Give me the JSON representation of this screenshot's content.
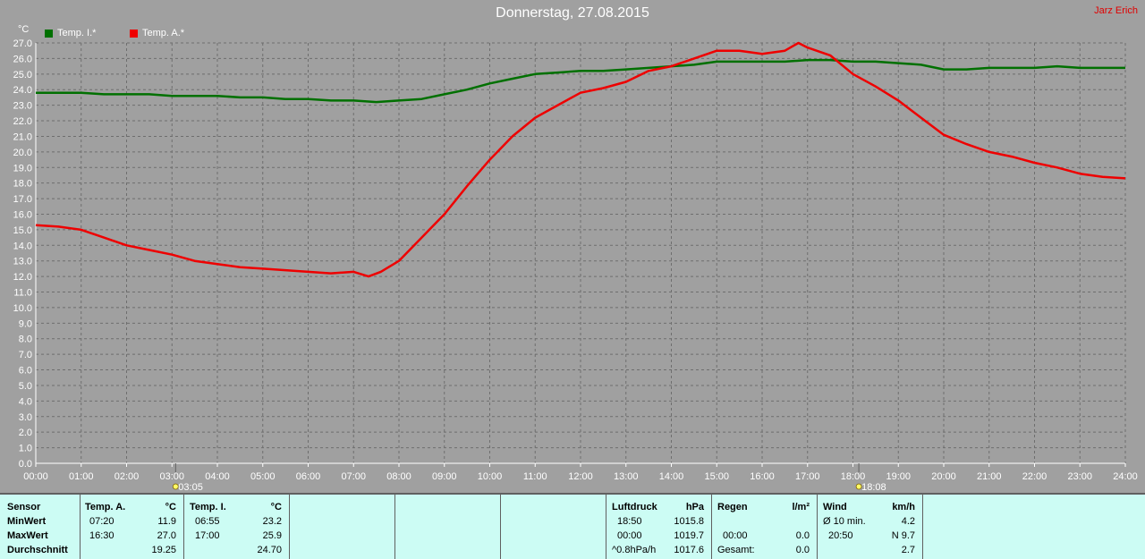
{
  "title": "Donnerstag, 27.08.2015",
  "author": "Jarz Erich",
  "chart_data": {
    "type": "line",
    "y_unit": "°C",
    "ylim": [
      0,
      27
    ],
    "y_ticks": [
      "0.0",
      "1.0",
      "2.0",
      "3.0",
      "4.0",
      "5.0",
      "6.0",
      "7.0",
      "8.0",
      "9.0",
      "10.0",
      "11.0",
      "12.0",
      "13.0",
      "14.0",
      "15.0",
      "16.0",
      "17.0",
      "18.0",
      "19.0",
      "20.0",
      "21.0",
      "22.0",
      "23.0",
      "24.0",
      "25.0",
      "26.0",
      "27.0"
    ],
    "x_ticks": [
      "00:00",
      "01:00",
      "02:00",
      "03:00",
      "04:00",
      "05:00",
      "06:00",
      "07:00",
      "08:00",
      "09:00",
      "10:00",
      "11:00",
      "12:00",
      "13:00",
      "14:00",
      "15:00",
      "16:00",
      "17:00",
      "18:00",
      "19:00",
      "20:00",
      "21:00",
      "22:00",
      "23:00",
      "24:00"
    ],
    "xlim": [
      0,
      24
    ],
    "grid": true,
    "legend": "top-left",
    "x_markers": [
      {
        "time": 3.08,
        "label": "03:05",
        "icon": "sunrise-icon"
      },
      {
        "time": 18.13,
        "label": "18:08",
        "icon": "sunset-icon"
      }
    ],
    "series": [
      {
        "name": "Temp. I.*",
        "color": "#007000",
        "x": [
          0,
          1,
          1.5,
          2,
          2.5,
          3,
          3.5,
          4,
          4.5,
          5,
          5.5,
          6,
          6.5,
          7,
          7.5,
          8,
          8.5,
          9,
          9.5,
          10,
          10.5,
          11,
          11.5,
          12,
          12.5,
          13,
          13.5,
          14,
          14.5,
          15,
          15.5,
          16,
          16.5,
          17,
          17.5,
          18,
          18.5,
          19,
          19.5,
          20,
          20.5,
          21,
          21.5,
          22,
          22.5,
          23,
          23.5,
          24
        ],
        "y": [
          23.8,
          23.8,
          23.7,
          23.7,
          23.7,
          23.6,
          23.6,
          23.6,
          23.5,
          23.5,
          23.4,
          23.4,
          23.3,
          23.3,
          23.2,
          23.3,
          23.4,
          23.7,
          24.0,
          24.4,
          24.7,
          25.0,
          25.1,
          25.2,
          25.2,
          25.3,
          25.4,
          25.5,
          25.6,
          25.8,
          25.8,
          25.8,
          25.8,
          25.9,
          25.9,
          25.8,
          25.8,
          25.7,
          25.6,
          25.3,
          25.3,
          25.4,
          25.4,
          25.4,
          25.5,
          25.4,
          25.4,
          25.4
        ]
      },
      {
        "name": "Temp. A.*",
        "color": "#ee0000",
        "x": [
          0,
          0.5,
          1,
          1.5,
          2,
          2.5,
          3,
          3.5,
          4,
          4.5,
          5,
          5.5,
          6,
          6.5,
          7,
          7.33,
          7.6,
          8,
          8.5,
          9,
          9.5,
          10,
          10.5,
          11,
          11.5,
          12,
          12.5,
          13,
          13.5,
          14,
          14.5,
          15,
          15.5,
          16,
          16.5,
          16.8,
          17,
          17.5,
          18,
          18.5,
          19,
          19.5,
          20,
          20.5,
          21,
          21.5,
          22,
          22.5,
          23,
          23.5,
          24
        ],
        "y": [
          15.3,
          15.2,
          15.0,
          14.5,
          14.0,
          13.7,
          13.4,
          13.0,
          12.8,
          12.6,
          12.5,
          12.4,
          12.3,
          12.2,
          12.3,
          12.0,
          12.3,
          13.0,
          14.5,
          16.0,
          17.8,
          19.5,
          21.0,
          22.2,
          23.0,
          23.8,
          24.1,
          24.5,
          25.2,
          25.5,
          26.0,
          26.5,
          26.5,
          26.3,
          26.5,
          27.0,
          26.7,
          26.2,
          25.0,
          24.2,
          23.3,
          22.2,
          21.1,
          20.5,
          20.0,
          19.7,
          19.3,
          19.0,
          18.6,
          18.4,
          18.3
        ]
      }
    ]
  },
  "table": {
    "sensor_header": "Sensor",
    "row_labels": [
      "MinWert",
      "MaxWert",
      "Durchschnitt"
    ],
    "temp_a": {
      "header": "Temp. A.",
      "unit": "°C",
      "min_time": "07:20",
      "min": "11.9",
      "max_time": "16:30",
      "max": "27.0",
      "avg": "19.25"
    },
    "temp_i": {
      "header": "Temp. I.",
      "unit": "°C",
      "min_time": "06:55",
      "min": "23.2",
      "max_time": "17:00",
      "max": "25.9",
      "avg": "24.70"
    },
    "pressure": {
      "header": "Luftdruck",
      "unit": "hPa",
      "min_time": "18:50",
      "min": "1015.8",
      "max_time": "00:00",
      "max": "1019.7",
      "trend_label": "^0.8hPa/h",
      "avg": "1017.6"
    },
    "rain": {
      "header": "Regen",
      "unit": "l/m²",
      "max_time": "00:00",
      "max": "0.0",
      "total_label": "Gesamt:",
      "total": "0.0"
    },
    "wind": {
      "header": "Wind",
      "unit": "km/h",
      "avg_label": "Ø 10 min.",
      "avg": "4.2",
      "max_time": "20:50",
      "max": "N 9.7",
      "mean": "2.7"
    }
  }
}
